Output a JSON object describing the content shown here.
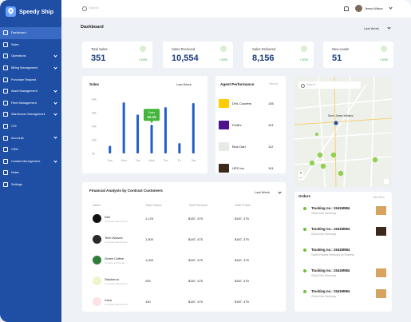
{
  "brand": {
    "name": "Speedy Ship"
  },
  "sidebar": {
    "items": [
      {
        "label": "Dashboard",
        "active": true,
        "has_chevron": false
      },
      {
        "label": "Sales",
        "active": false,
        "has_chevron": false
      },
      {
        "label": "Operations",
        "active": false,
        "has_chevron": true
      },
      {
        "label": "Billing Management",
        "active": false,
        "has_chevron": true
      },
      {
        "label": "Purchase Request",
        "active": false,
        "has_chevron": false
      },
      {
        "label": "Asset Management",
        "active": false,
        "has_chevron": true
      },
      {
        "label": "Fleet Management",
        "active": false,
        "has_chevron": true
      },
      {
        "label": "Warehouse Management",
        "active": false,
        "has_chevron": true
      },
      {
        "label": "CHI",
        "active": false,
        "has_chevron": false
      },
      {
        "label": "Accounts",
        "active": false,
        "has_chevron": true
      },
      {
        "label": "CRM",
        "active": false,
        "has_chevron": false
      },
      {
        "label": "Contact Management",
        "active": false,
        "has_chevron": true
      },
      {
        "label": "Notes",
        "active": false,
        "has_chevron": false
      },
      {
        "label": "Settings",
        "active": false,
        "has_chevron": false
      }
    ]
  },
  "topbar": {
    "search_placeholder": "Search",
    "user_name": "Jenny Wilson"
  },
  "dashboard": {
    "title": "Dashboard",
    "range": "Last Week"
  },
  "stats": [
    {
      "label": "Total Sales",
      "value": "351",
      "change": "+10%"
    },
    {
      "label": "Sales Received",
      "value": "10,554",
      "change": "+10%"
    },
    {
      "label": "Sales Delivered",
      "value": "8,156",
      "change": "+10%"
    },
    {
      "label": "New Leads",
      "value": "51",
      "change": "+10%"
    }
  ],
  "chart_data": {
    "type": "bar",
    "title": "Sales",
    "range": "Last Week",
    "categories": [
      "Sun",
      "Mon",
      "Tue",
      "Wed",
      "Thu",
      "Fri",
      "Sat"
    ],
    "series": [
      {
        "values": [
          11,
          75,
          57,
          42,
          68,
          15,
          74
        ]
      }
    ],
    "y_ticks": [
      "0k",
      "20k",
      "40k",
      "60k",
      "80k"
    ],
    "ylim": [
      0,
      80
    ],
    "tooltip": {
      "category": "Wed",
      "label": "Sales",
      "value": "42.1k"
    },
    "color": "#1f5fc8"
  },
  "agents": {
    "title": "Agent Performance",
    "view_more": "View All",
    "rows": [
      {
        "name": "DHL Couriers",
        "value": "135",
        "color": "#ffcc00"
      },
      {
        "name": "FedEx",
        "value": "113",
        "color": "#4d148c"
      },
      {
        "name": "Blue Dart",
        "value": "112",
        "color": "#e6ebe6"
      },
      {
        "name": "UPS Inc.",
        "value": "101",
        "color": "#3b2a1c"
      }
    ]
  },
  "finance": {
    "title": "Financial Analysis by Contract Customers",
    "range": "Last Week",
    "columns": [
      "Name",
      "Total Orders",
      "Total Revenue",
      "Total Profits"
    ],
    "rows": [
      {
        "name": "Dell",
        "sub": "Computer Electronics",
        "orders": "1,125",
        "revenue": "$187, 475",
        "profit": "$187, 475",
        "logo_color": "#111111"
      },
      {
        "name": "Tech Wolves",
        "sub": "Computer Electronics",
        "orders": "1,500",
        "revenue": "$187, 475",
        "profit": "$187, 475",
        "logo_color": "#2a2a2a"
      },
      {
        "name": "Green Coffee",
        "sub": "Grocery and Foods",
        "orders": "1,000",
        "revenue": "$187, 475",
        "profit": "$187, 475",
        "logo_color": "#2f7d3a"
      },
      {
        "name": "Stackeroo",
        "sub": "Computer Electronics",
        "orders": "200",
        "revenue": "$187, 475",
        "profit": "$187, 475",
        "logo_color": "#f1f3c8"
      },
      {
        "name": "Zava",
        "sub": "Computer Electronics",
        "orders": "100",
        "revenue": "$187, 475",
        "profit": "$187, 475",
        "logo_color": "#fde2e2"
      }
    ]
  },
  "map": {
    "search_placeholder": "Search",
    "pin_label": "Store: James Williams"
  },
  "orders": {
    "title": "Orders",
    "view_more": "View More",
    "rows": [
      {
        "id": "Tracking no.: 1541M584",
        "sub": "Gloria Doe Kentucky",
        "img": "box"
      },
      {
        "id": "Tracking no.: 1541M584",
        "sub": "Gloria Doe Kentucky",
        "img": "ups"
      },
      {
        "id": "Tracking no.: 1541M584",
        "sub": "Gloria Packed Kentucky by Express",
        "img": "fedex"
      },
      {
        "id": "Tracking no.: 1541M584",
        "sub": "Gloria Doe Kentucky",
        "img": "box"
      },
      {
        "id": "Tracking no.: 1541M584",
        "sub": "Gloria Doe Kentucky",
        "img": "box"
      }
    ]
  }
}
